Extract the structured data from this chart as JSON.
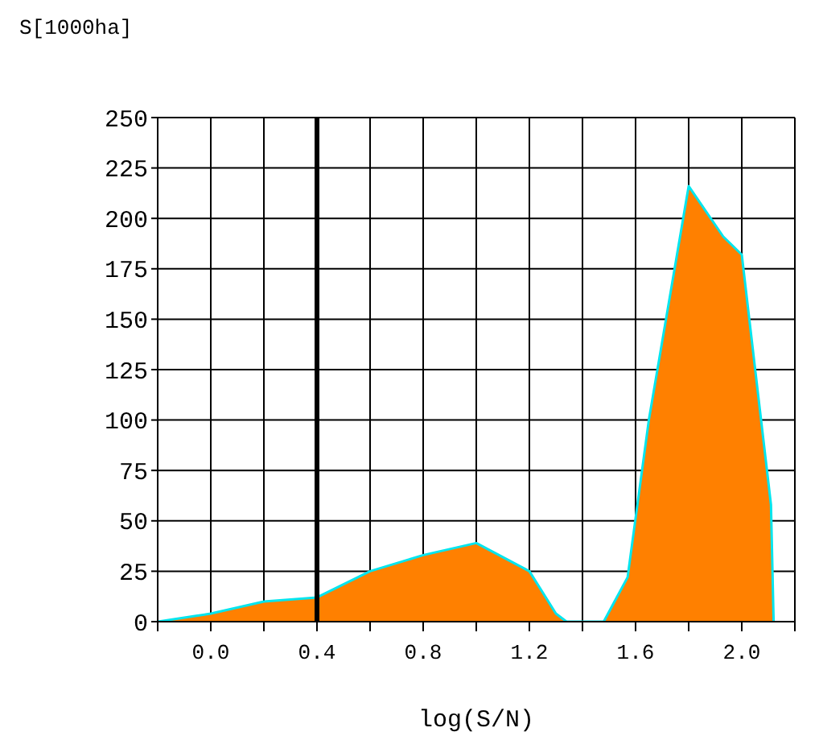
{
  "chart_data": {
    "type": "area",
    "xlabel": "log(S/N)",
    "ylabel": "S[1000ha]",
    "x": [
      -0.2,
      0.0,
      0.2,
      0.4,
      0.6,
      0.8,
      1.0,
      1.2,
      1.3,
      1.34,
      1.48,
      1.57,
      1.65,
      1.8,
      1.93,
      2.0,
      2.11,
      2.12
    ],
    "series": [
      {
        "color": "#ff8000",
        "values": [
          0,
          4,
          10,
          12,
          25,
          33,
          39,
          25,
          4,
          0,
          0,
          22,
          100,
          216,
          191,
          182,
          58,
          0
        ]
      }
    ],
    "xlim": [
      -0.2,
      2.2
    ],
    "xticks": [
      {
        "value": -0.2,
        "label": null
      },
      {
        "value": 0,
        "label": "0.0"
      },
      {
        "value": 0.2,
        "label": null
      },
      {
        "value": 0.4,
        "label": "0.4"
      },
      {
        "value": 0.6,
        "label": null
      },
      {
        "value": 0.8,
        "label": "0.8"
      },
      {
        "value": 1.0,
        "label": null
      },
      {
        "value": 1.2,
        "label": "1.2"
      },
      {
        "value": 1.4,
        "label": null
      },
      {
        "value": 1.6,
        "label": "1.6"
      },
      {
        "value": 1.8,
        "label": null
      },
      {
        "value": 2.0,
        "label": "2.0"
      },
      {
        "value": 2.2,
        "label": null
      }
    ],
    "ylim": [
      0,
      250
    ],
    "yticks": [
      0,
      25,
      50,
      75,
      100,
      125,
      150,
      175,
      200,
      225,
      250
    ],
    "ref_lines": [
      {
        "axis": "x",
        "value": 0.4,
        "color": "#000000"
      }
    ],
    "grid": true
  }
}
